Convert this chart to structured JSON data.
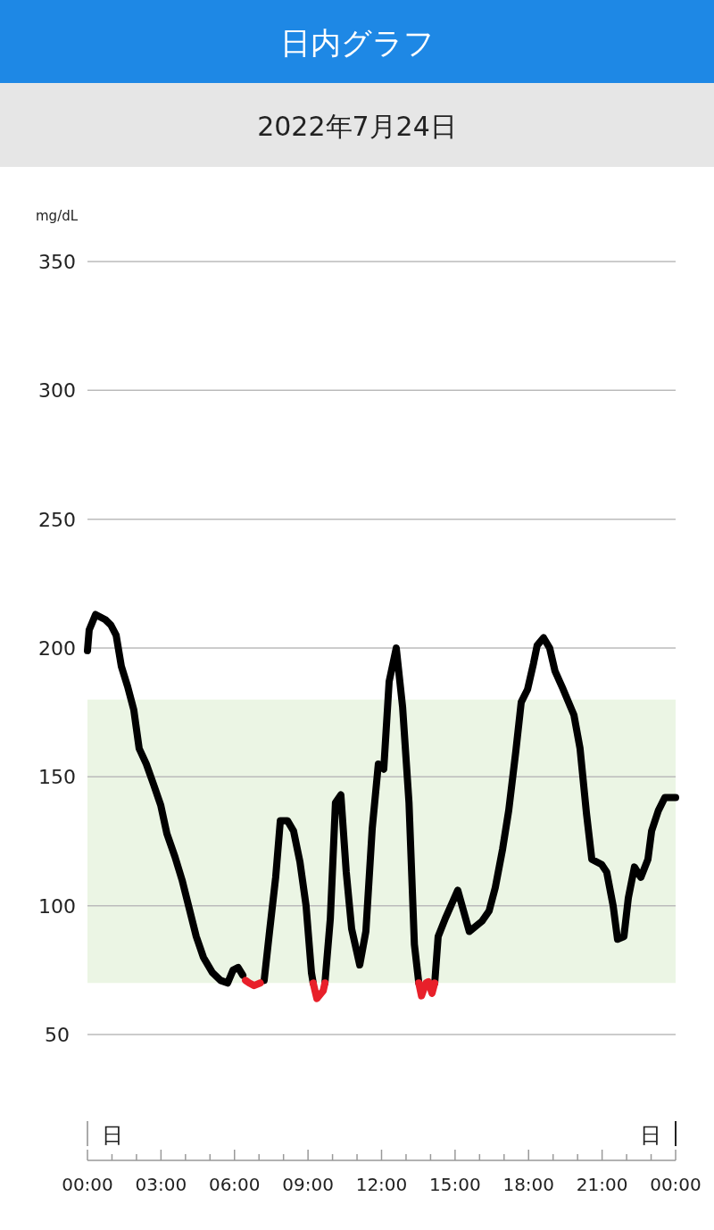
{
  "chart_data": {
    "type": "line",
    "title": "日内グラフ",
    "subtitle": "2022年7月24日",
    "ylabel": "mg/dL",
    "xlim": [
      0,
      24
    ],
    "ylim": [
      50,
      350
    ],
    "yticks": [
      50,
      100,
      150,
      200,
      250,
      300,
      350
    ],
    "xticks": [
      {
        "value": 0,
        "label": "00:00"
      },
      {
        "value": 1,
        "label": null
      },
      {
        "value": 2,
        "label": null
      },
      {
        "value": 3,
        "label": "03:00"
      },
      {
        "value": 4,
        "label": null
      },
      {
        "value": 5,
        "label": null
      },
      {
        "value": 6,
        "label": "06:00"
      },
      {
        "value": 7,
        "label": null
      },
      {
        "value": 8,
        "label": null
      },
      {
        "value": 9,
        "label": "09:00"
      },
      {
        "value": 10,
        "label": null
      },
      {
        "value": 11,
        "label": null
      },
      {
        "value": 12,
        "label": "12:00"
      },
      {
        "value": 13,
        "label": null
      },
      {
        "value": 14,
        "label": null
      },
      {
        "value": 15,
        "label": "15:00"
      },
      {
        "value": 16,
        "label": null
      },
      {
        "value": 17,
        "label": null
      },
      {
        "value": 18,
        "label": "18:00"
      },
      {
        "value": 19,
        "label": null
      },
      {
        "value": 20,
        "label": null
      },
      {
        "value": 21,
        "label": "21:00"
      },
      {
        "value": 22,
        "label": null
      },
      {
        "value": 23,
        "label": null
      },
      {
        "value": 24,
        "label": "00:00"
      }
    ],
    "grid": "y",
    "marker": "none",
    "line_style": "solid",
    "bands": [
      {
        "axis": "y",
        "from": 70,
        "to": 180,
        "color": "#ebf5e4"
      }
    ],
    "annotations": [
      "日",
      "日"
    ],
    "series": [
      {
        "color": "#000000",
        "x": [
          0,
          0.07,
          0.33,
          0.73,
          0.95,
          1.17,
          1.38,
          1.64,
          1.89,
          2.11,
          2.4,
          2.7,
          2.99,
          3.24,
          3.57,
          3.86,
          4.15,
          4.44,
          4.73,
          5.1,
          5.43,
          5.72,
          5.94,
          6.15,
          6.34,
          6.45,
          6.78,
          7.08,
          7.21,
          7.43,
          7.68,
          7.87,
          8.16,
          8.41,
          8.67,
          8.92,
          9.14,
          9.21,
          9.36,
          9.62,
          9.69,
          9.91,
          10.12,
          10.34,
          10.56,
          10.78,
          11.11,
          11.36,
          11.62,
          11.87,
          12.09,
          12.31,
          12.6,
          12.86,
          13.12,
          13.34,
          13.52,
          13.63,
          13.81,
          13.91,
          14.06,
          14.17,
          14.31,
          14.6,
          15.11,
          15.58,
          16.1,
          16.39,
          16.64,
          16.94,
          17.19,
          17.48,
          17.7,
          17.96,
          18.2,
          18.35,
          18.61,
          18.86,
          19.08,
          19.41,
          19.85,
          20.1,
          20.36,
          20.58,
          20.98,
          21.19,
          21.45,
          21.63,
          21.89,
          22.07,
          22.32,
          22.58,
          22.87,
          23.02,
          23.3,
          23.56,
          24
        ],
        "values": [
          199,
          207,
          213,
          211,
          209,
          205,
          193,
          185,
          176,
          161,
          155,
          147,
          139,
          128,
          119,
          110,
          99,
          88,
          80,
          74,
          71,
          70,
          75,
          76,
          73,
          null,
          null,
          null,
          71,
          90,
          111,
          133,
          133,
          129,
          117,
          100,
          74,
          70,
          null,
          null,
          70,
          95,
          140,
          143,
          113,
          91,
          77,
          90,
          130,
          155,
          153,
          187,
          200,
          177,
          140,
          85,
          70,
          null,
          null,
          null,
          null,
          70,
          88,
          95,
          106,
          90,
          94,
          98,
          107,
          122,
          137,
          160,
          179,
          184,
          194,
          201,
          204,
          200,
          191,
          184,
          174,
          161,
          136,
          118,
          116,
          113,
          100,
          87,
          88,
          103,
          115,
          111,
          118,
          129,
          137,
          142,
          142
        ]
      },
      {
        "color": "#e8202a",
        "x": [
          6.45,
          6.6,
          6.8,
          7.05,
          8,
          9.21,
          9.36,
          9.62,
          9.69,
          11,
          13.52,
          13.63,
          13.81,
          13.91,
          14.06,
          14.17
        ],
        "values": [
          71,
          70,
          69,
          70,
          null,
          70,
          64,
          67,
          70,
          null,
          70,
          65,
          70,
          70.5,
          66,
          70
        ]
      }
    ]
  }
}
